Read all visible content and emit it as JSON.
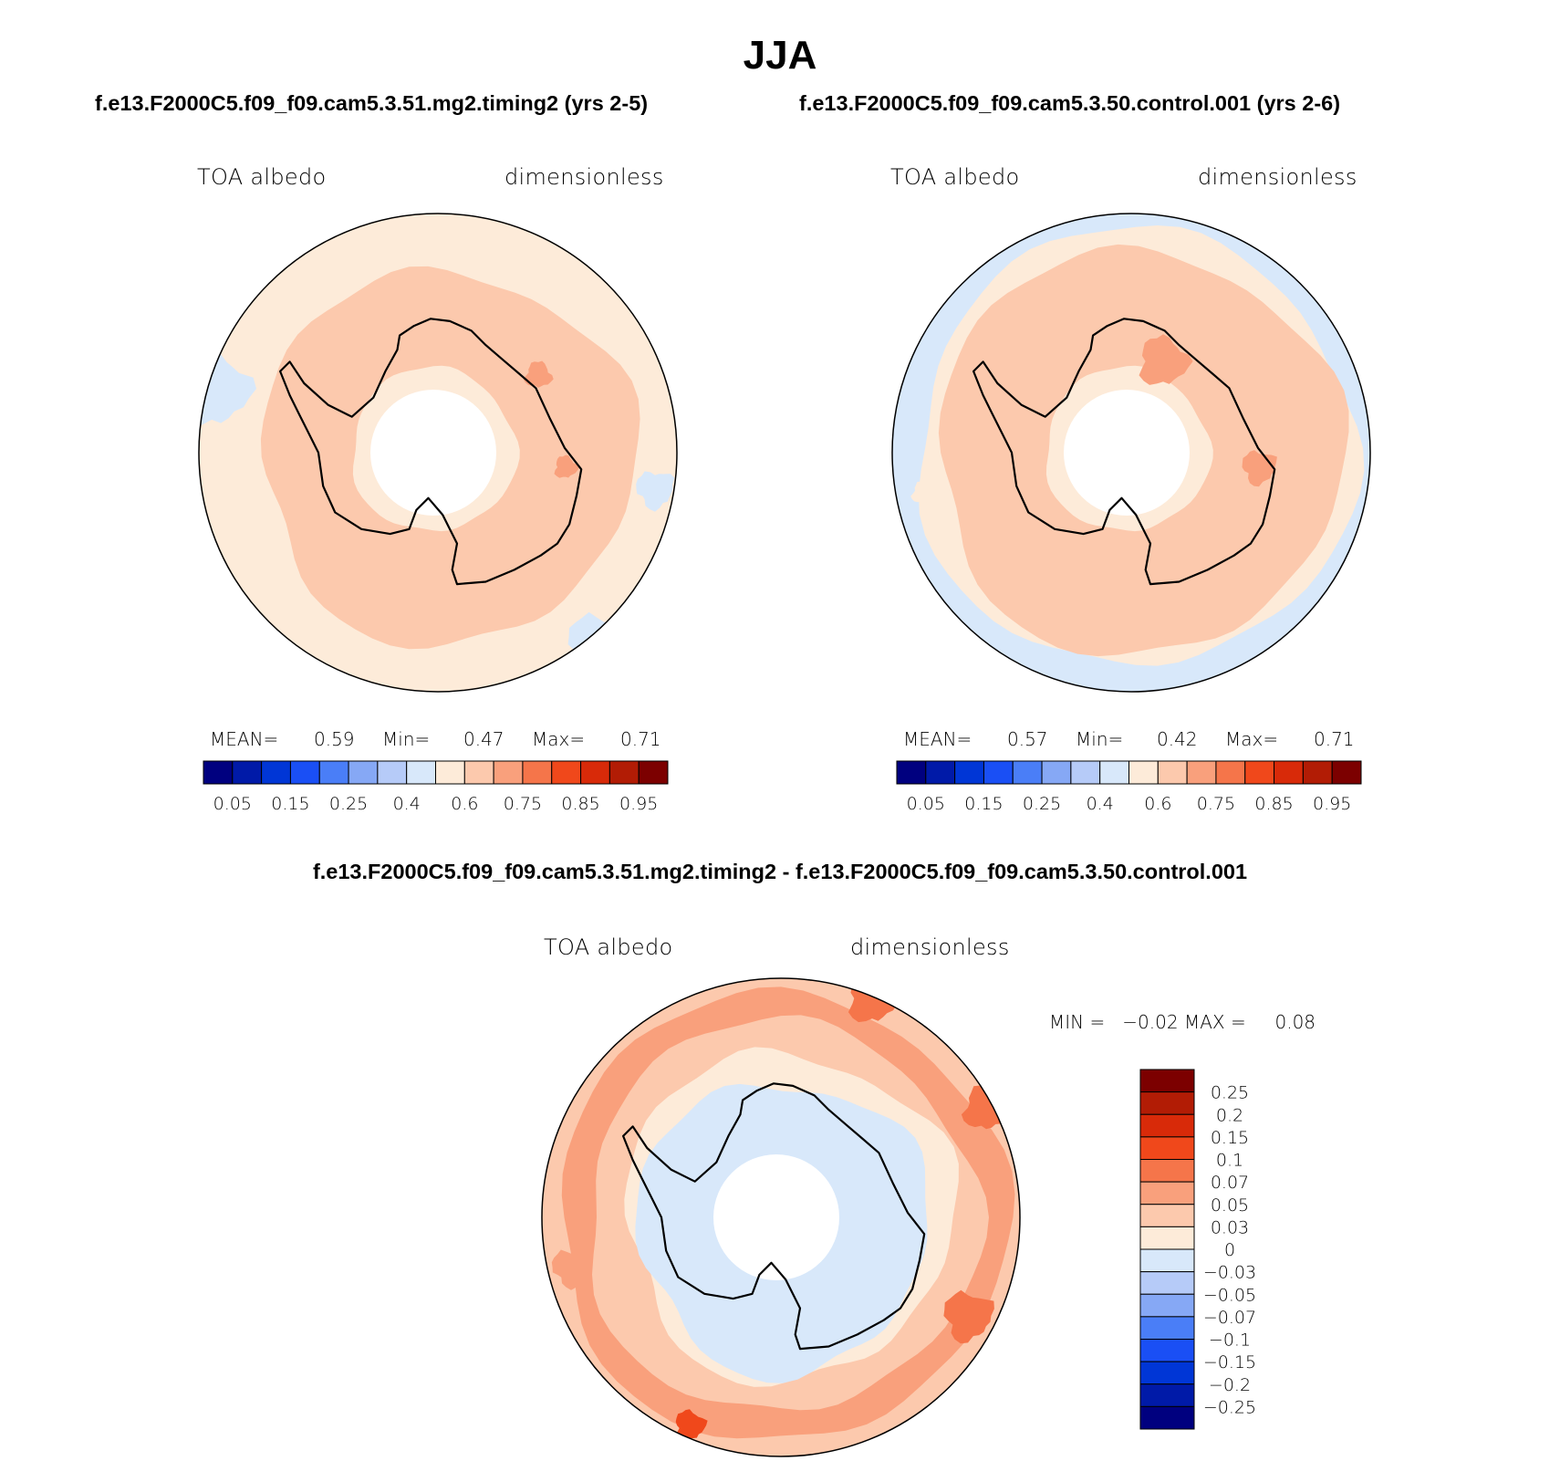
{
  "title": "JJA",
  "panels": [
    {
      "case_title": "f.e13.F2000C5.f09_f09.cam5.3.51.mg2.timing2 (yrs 2-5)",
      "variable": "TOA albedo",
      "units": "dimensionless",
      "stats": {
        "mean_label": "MEAN=",
        "mean": "0.59",
        "min_label": "Min=",
        "min": "0.47",
        "max_label": "Max=",
        "max": "0.71"
      }
    },
    {
      "case_title": "f.e13.F2000C5.f09_f09.cam5.3.50.control.001 (yrs 2-6)",
      "variable": "TOA albedo",
      "units": "dimensionless",
      "stats": {
        "mean_label": "MEAN=",
        "mean": "0.57",
        "min_label": "Min=",
        "min": "0.42",
        "max_label": "Max=",
        "max": "0.71"
      }
    }
  ],
  "diff_panel": {
    "title": "f.e13.F2000C5.f09_f09.cam5.3.51.mg2.timing2 - f.e13.F2000C5.f09_f09.cam5.3.50.control.001",
    "variable": "TOA albedo",
    "units": "dimensionless",
    "stats_text": "MIN =   −0.02 MAX =     0.08"
  },
  "chart_data": [
    {
      "type": "heatmap",
      "projection": "south-polar-stereographic",
      "title": "TOA albedo",
      "units": "dimensionless",
      "mean": 0.59,
      "min": 0.47,
      "max": 0.71,
      "levels": [
        0.05,
        0.1,
        0.15,
        0.2,
        0.25,
        0.3,
        0.4,
        0.5,
        0.6,
        0.7,
        0.75,
        0.8,
        0.85,
        0.9,
        0.95
      ],
      "tick_labels": [
        "0.05",
        "0.15",
        "0.25",
        "0.4",
        "0.6",
        "0.75",
        "0.85",
        "0.95"
      ],
      "colors": [
        "#00007f",
        "#001aa8",
        "#0036d6",
        "#1a4ff5",
        "#4a7ef7",
        "#86a8f5",
        "#b6cbf8",
        "#d8e8fa",
        "#fdebd9",
        "#fcc9ad",
        "#f9a07c",
        "#f5754a",
        "#f0481b",
        "#d82a09",
        "#b21c05",
        "#7c0000"
      ]
    },
    {
      "type": "heatmap",
      "projection": "south-polar-stereographic",
      "title": "TOA albedo",
      "units": "dimensionless",
      "mean": 0.57,
      "min": 0.42,
      "max": 0.71,
      "levels": [
        0.05,
        0.1,
        0.15,
        0.2,
        0.25,
        0.3,
        0.4,
        0.5,
        0.6,
        0.7,
        0.75,
        0.8,
        0.85,
        0.9,
        0.95
      ],
      "tick_labels": [
        "0.05",
        "0.15",
        "0.25",
        "0.4",
        "0.6",
        "0.75",
        "0.85",
        "0.95"
      ],
      "colors": [
        "#00007f",
        "#001aa8",
        "#0036d6",
        "#1a4ff5",
        "#4a7ef7",
        "#86a8f5",
        "#b6cbf8",
        "#d8e8fa",
        "#fdebd9",
        "#fcc9ad",
        "#f9a07c",
        "#f5754a",
        "#f0481b",
        "#d82a09",
        "#b21c05",
        "#7c0000"
      ]
    },
    {
      "type": "heatmap",
      "projection": "south-polar-stereographic",
      "title": "TOA albedo",
      "units": "dimensionless",
      "min": -0.02,
      "max": 0.08,
      "levels_top_to_bottom": [
        "0.25",
        "0.2",
        "0.15",
        "0.1",
        "0.07",
        "0.05",
        "0.03",
        "0",
        "−0.03",
        "−0.05",
        "−0.07",
        "−0.1",
        "−0.15",
        "−0.2",
        "−0.25"
      ],
      "colors_top_to_bottom": [
        "#7c0000",
        "#b21c05",
        "#d82a09",
        "#f0481b",
        "#f5754a",
        "#f9a07c",
        "#fcc9ad",
        "#fdebd9",
        "#d8e8fa",
        "#b6cbf8",
        "#86a8f5",
        "#4a7ef7",
        "#1a4ff5",
        "#0036d6",
        "#001aa8",
        "#00007f"
      ]
    }
  ]
}
